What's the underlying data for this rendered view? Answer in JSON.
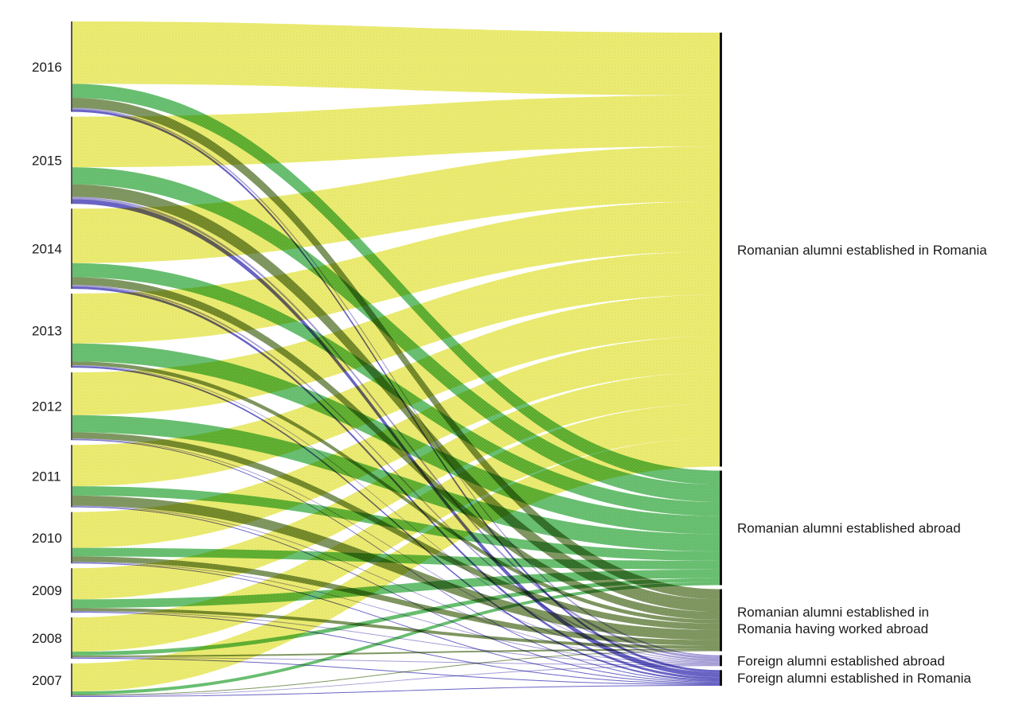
{
  "chart_data": {
    "type": "sankey",
    "sources": [
      "2016",
      "2015",
      "2014",
      "2013",
      "2012",
      "2011",
      "2010",
      "2009",
      "2008",
      "2007"
    ],
    "targets": [
      {
        "id": "ro_ro",
        "label_lines": [
          "Romanian alumni established in Romania"
        ],
        "color": "#ecea7a"
      },
      {
        "id": "ro_abroad",
        "label_lines": [
          "Romanian alumni established abroad"
        ],
        "color": "#58b96b"
      },
      {
        "id": "ro_ro_worked",
        "label_lines": [
          "Romanian alumni established in",
          "Romania having worked abroad"
        ],
        "color": "#728458"
      },
      {
        "id": "foreign_abroad",
        "label_lines": [
          "Foreign alumni established abroad"
        ],
        "color": "#a49bd6"
      },
      {
        "id": "foreign_ro",
        "label_lines": [
          "Foreign alumni established in Romania"
        ],
        "color": "#5b55b5"
      }
    ],
    "flow_colors": {
      "ro_ro": "#eceb66",
      "ro_abroad": "#55b85e",
      "ro_ro_worked": "#6f8a4c",
      "foreign_abroad": "#9b92d4",
      "foreign_ro": "#5550bf"
    },
    "flows": [
      {
        "source": "2016",
        "target": "ro_ro",
        "value": 80
      },
      {
        "source": "2016",
        "target": "ro_abroad",
        "value": 18
      },
      {
        "source": "2016",
        "target": "ro_ro_worked",
        "value": 13
      },
      {
        "source": "2016",
        "target": "foreign_abroad",
        "value": 2
      },
      {
        "source": "2016",
        "target": "foreign_ro",
        "value": 3
      },
      {
        "source": "2015",
        "target": "ro_ro",
        "value": 65
      },
      {
        "source": "2015",
        "target": "ro_abroad",
        "value": 22
      },
      {
        "source": "2015",
        "target": "ro_ro_worked",
        "value": 16
      },
      {
        "source": "2015",
        "target": "foreign_abroad",
        "value": 3
      },
      {
        "source": "2015",
        "target": "foreign_ro",
        "value": 6
      },
      {
        "source": "2014",
        "target": "ro_ro",
        "value": 70
      },
      {
        "source": "2014",
        "target": "ro_abroad",
        "value": 18
      },
      {
        "source": "2014",
        "target": "ro_ro_worked",
        "value": 10
      },
      {
        "source": "2014",
        "target": "foreign_abroad",
        "value": 2
      },
      {
        "source": "2014",
        "target": "foreign_ro",
        "value": 3
      },
      {
        "source": "2013",
        "target": "ro_ro",
        "value": 64
      },
      {
        "source": "2013",
        "target": "ro_abroad",
        "value": 23
      },
      {
        "source": "2013",
        "target": "ro_ro_worked",
        "value": 5
      },
      {
        "source": "2013",
        "target": "foreign_abroad",
        "value": 1
      },
      {
        "source": "2013",
        "target": "foreign_ro",
        "value": 2
      },
      {
        "source": "2012",
        "target": "ro_ro",
        "value": 55
      },
      {
        "source": "2012",
        "target": "ro_abroad",
        "value": 22
      },
      {
        "source": "2012",
        "target": "ro_ro_worked",
        "value": 8
      },
      {
        "source": "2012",
        "target": "foreign_abroad",
        "value": 1
      },
      {
        "source": "2012",
        "target": "foreign_ro",
        "value": 1
      },
      {
        "source": "2011",
        "target": "ro_ro",
        "value": 53
      },
      {
        "source": "2011",
        "target": "ro_abroad",
        "value": 12
      },
      {
        "source": "2011",
        "target": "ro_ro_worked",
        "value": 13
      },
      {
        "source": "2011",
        "target": "foreign_abroad",
        "value": 1
      },
      {
        "source": "2011",
        "target": "foreign_ro",
        "value": 1
      },
      {
        "source": "2010",
        "target": "ro_ro",
        "value": 46
      },
      {
        "source": "2010",
        "target": "ro_abroad",
        "value": 11
      },
      {
        "source": "2010",
        "target": "ro_ro_worked",
        "value": 7
      },
      {
        "source": "2010",
        "target": "foreign_abroad",
        "value": 1
      },
      {
        "source": "2010",
        "target": "foreign_ro",
        "value": 1
      },
      {
        "source": "2009",
        "target": "ro_ro",
        "value": 40
      },
      {
        "source": "2009",
        "target": "ro_abroad",
        "value": 11
      },
      {
        "source": "2009",
        "target": "ro_ro_worked",
        "value": 4
      },
      {
        "source": "2009",
        "target": "foreign_abroad",
        "value": 1
      },
      {
        "source": "2009",
        "target": "foreign_ro",
        "value": 1
      },
      {
        "source": "2008",
        "target": "ro_ro",
        "value": 44
      },
      {
        "source": "2008",
        "target": "ro_abroad",
        "value": 5
      },
      {
        "source": "2008",
        "target": "ro_ro_worked",
        "value": 2
      },
      {
        "source": "2008",
        "target": "foreign_abroad",
        "value": 1
      },
      {
        "source": "2008",
        "target": "foreign_ro",
        "value": 1
      },
      {
        "source": "2007",
        "target": "ro_ro",
        "value": 36
      },
      {
        "source": "2007",
        "target": "ro_abroad",
        "value": 4
      },
      {
        "source": "2007",
        "target": "ro_ro_worked",
        "value": 1
      },
      {
        "source": "2007",
        "target": "foreign_abroad",
        "value": 1
      },
      {
        "source": "2007",
        "target": "foreign_ro",
        "value": 1
      }
    ]
  }
}
